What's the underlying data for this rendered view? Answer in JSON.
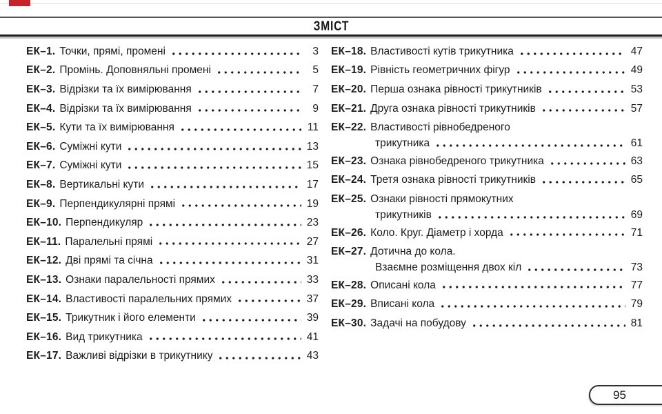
{
  "header": {
    "title": "ЗМІСТ"
  },
  "footer": {
    "page_number": "95"
  },
  "colors": {
    "accent_red": "#c4232b",
    "text": "#1b1b1b"
  },
  "toc": {
    "columns": [
      {
        "side": "left",
        "entries": [
          {
            "num": "ЕК–1.",
            "title": "Точки, прямі, промені",
            "page": "3"
          },
          {
            "num": "ЕК–2.",
            "title": "Промінь. Доповняльні промені",
            "page": "5"
          },
          {
            "num": "ЕК–3.",
            "title": "Відрізки та їх вимірювання",
            "page": "7"
          },
          {
            "num": "ЕК–4.",
            "title": "Відрізки та їх вимірювання",
            "page": "9"
          },
          {
            "num": "ЕК–5.",
            "title": "Кути та їх вимірювання",
            "page": "11"
          },
          {
            "num": "ЕК–6.",
            "title": "Суміжні кути",
            "page": "13"
          },
          {
            "num": "ЕК–7.",
            "title": "Суміжні кути",
            "page": "15"
          },
          {
            "num": "ЕК–8.",
            "title": "Вертикальні кути",
            "page": "17"
          },
          {
            "num": "ЕК–9.",
            "title": "Перпендикулярні прямі",
            "page": "19"
          },
          {
            "num": "ЕК–10.",
            "title": "Перпендикуляр",
            "page": "23"
          },
          {
            "num": "ЕК–11.",
            "title": "Паралельні прямі",
            "page": "27"
          },
          {
            "num": "ЕК–12.",
            "title": "Дві прямі та січна",
            "page": "31"
          },
          {
            "num": "ЕК–13.",
            "title": "Ознаки паралельності прямих",
            "page": "33"
          },
          {
            "num": "ЕК–14.",
            "title": "Властивості паралельних прямих",
            "page": "37"
          },
          {
            "num": "ЕК–15.",
            "title": "Трикутник і його елементи",
            "page": "39"
          },
          {
            "num": "ЕК–16.",
            "title": "Вид трикутника",
            "page": "41"
          },
          {
            "num": "ЕК–17.",
            "title": "Важливі відрізки в трикутнику",
            "page": "43"
          }
        ]
      },
      {
        "side": "right",
        "entries": [
          {
            "num": "ЕК–18.",
            "title": "Властивості кутів трикутника",
            "page": "47"
          },
          {
            "num": "ЕК–19.",
            "title": "Рівність геометричних фігур",
            "page": "49"
          },
          {
            "num": "ЕК–20.",
            "title": "Перша ознака рівності трикутників",
            "page": "53"
          },
          {
            "num": "ЕК–21.",
            "title": "Друга ознака рівності трикутників",
            "page": "57"
          },
          {
            "num": "ЕК–22.",
            "title": "Властивості рівнобедреного",
            "title2": "трикутника",
            "page": "61"
          },
          {
            "num": "ЕК–23.",
            "title": "Ознака рівнобедреного трикутника",
            "page": "63"
          },
          {
            "num": "ЕК–24.",
            "title": "Третя ознака рівності трикутників",
            "page": "65"
          },
          {
            "num": "ЕК–25.",
            "title": "Ознаки рівності прямокутних",
            "title2": "трикутників",
            "page": "69"
          },
          {
            "num": "ЕК–26.",
            "title": "Коло. Круг. Діаметр і хорда",
            "page": "71"
          },
          {
            "num": "ЕК–27.",
            "title": "Дотична до кола.",
            "title2": "Взаємне розміщення двох кіл",
            "page": "73"
          },
          {
            "num": "ЕК–28.",
            "title": "Описані кола",
            "page": "77"
          },
          {
            "num": "ЕК–29.",
            "title": "Вписані кола",
            "page": "79"
          },
          {
            "num": "ЕК–30.",
            "title": "Задачі на побудову",
            "page": "81"
          }
        ]
      }
    ]
  }
}
